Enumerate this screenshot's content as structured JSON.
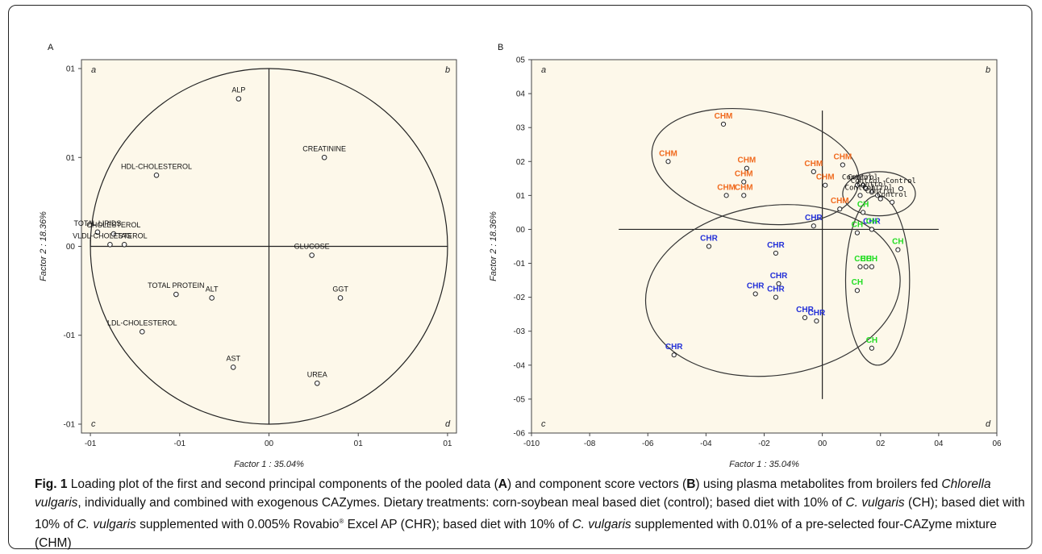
{
  "figure": {
    "caption": {
      "fig_label": "Fig. 1",
      "seg1": " Loading plot of the first and second principal components of the pooled data (",
      "A": "A",
      "seg2": ") and component score vectors (",
      "B": "B",
      "seg3": ") using plasma metabolites from broilers fed ",
      "species": "Chlorella vulgaris",
      "seg4": ", individually and combined with exogenous CAZymes. Dietary treatments: corn-soybean meal based diet (control); based diet with 10% of ",
      "cv1": "C. vulgaris",
      "seg5": " (CH); based diet with 10% of ",
      "cv2": "C. vulgaris",
      "seg6": " supplemented with 0.005% Rovabio",
      "reg": "®",
      "seg7": " Excel AP (CHR); based diet with 10% of ",
      "cv3": "C. vulgaris",
      "seg8": " supplemented with 0.01% of a pre-selected four-CAZyme mixture (CHM)"
    }
  },
  "chart_data": [
    {
      "type": "scatter",
      "panel_label": "A",
      "xlabel": "Factor 1 : 35.04%",
      "ylabel": "Factor 2 : 18.36%",
      "xlim": [
        -1.05,
        1.05
      ],
      "ylim": [
        -1.05,
        1.05
      ],
      "x_ticks": [
        -1.0,
        -0.5,
        0.0,
        0.5,
        1.0
      ],
      "x_tick_labels": [
        "-01",
        "-01",
        "00",
        "01",
        "01"
      ],
      "y_ticks": [
        1.0,
        0.5,
        0.0,
        -0.5,
        -1.0
      ],
      "y_tick_labels": [
        "01",
        "01",
        "00",
        "-01",
        "-01"
      ],
      "quadrant_labels": [
        "a",
        "b",
        "c",
        "d"
      ],
      "unit_circle": true,
      "points": [
        {
          "label": "ALP",
          "x": -0.17,
          "y": 0.83
        },
        {
          "label": "CREATININE",
          "x": 0.31,
          "y": 0.5
        },
        {
          "label": "HDL-CHOLESTEROL",
          "x": -0.63,
          "y": 0.4
        },
        {
          "label": "TOTAL LIPIDS",
          "x": -0.96,
          "y": 0.08
        },
        {
          "label": "CHOLESTEROL",
          "x": -0.87,
          "y": 0.07
        },
        {
          "label": "VLDL-CHOLESTEROL",
          "x": -0.89,
          "y": 0.01
        },
        {
          "label": "TAG",
          "x": -0.81,
          "y": 0.01
        },
        {
          "label": "GLUCOSE",
          "x": 0.24,
          "y": -0.05
        },
        {
          "label": "TOTAL PROTEIN",
          "x": -0.52,
          "y": -0.27
        },
        {
          "label": "ALT",
          "x": -0.32,
          "y": -0.29
        },
        {
          "label": "GGT",
          "x": 0.4,
          "y": -0.29
        },
        {
          "label": "LDL-CHOLESTEROL",
          "x": -0.71,
          "y": -0.48
        },
        {
          "label": "AST",
          "x": -0.2,
          "y": -0.68
        },
        {
          "label": "UREA",
          "x": 0.27,
          "y": -0.77
        }
      ]
    },
    {
      "type": "scatter",
      "panel_label": "B",
      "xlabel": "Factor 1 : 35.04%",
      "ylabel": "Factor 2 : 18.36%",
      "xlim": [
        -1.0,
        0.6
      ],
      "ylim": [
        -0.6,
        0.5
      ],
      "x_ticks": [
        -1.0,
        -0.8,
        -0.6,
        -0.4,
        -0.2,
        0.0,
        0.2,
        0.4,
        0.6
      ],
      "x_tick_labels": [
        "-010",
        "-08",
        "-06",
        "-04",
        "-02",
        "00",
        "02",
        "04",
        "06"
      ],
      "y_ticks": [
        0.5,
        0.4,
        0.3,
        0.2,
        0.1,
        0.0,
        -0.1,
        -0.2,
        -0.3,
        -0.4,
        -0.5,
        -0.6
      ],
      "y_tick_labels": [
        "05",
        "04",
        "03",
        "02",
        "01",
        "00",
        "-01",
        "-02",
        "-03",
        "-04",
        "-05",
        "-06"
      ],
      "quadrant_labels": [
        "a",
        "b",
        "c",
        "d"
      ],
      "colors": {
        "CHM": "#f06a1e",
        "CHR": "#2330d8",
        "CH": "#22dd22",
        "Control": "#111111"
      },
      "series": [
        {
          "name": "CHM",
          "points": [
            [
              -0.34,
              0.31
            ],
            [
              -0.53,
              0.2
            ],
            [
              -0.26,
              0.18
            ],
            [
              -0.27,
              0.14
            ],
            [
              -0.33,
              0.1
            ],
            [
              -0.27,
              0.1
            ],
            [
              -0.03,
              0.17
            ],
            [
              0.01,
              0.13
            ],
            [
              0.07,
              0.19
            ],
            [
              0.06,
              0.06
            ]
          ]
        },
        {
          "name": "CHR",
          "points": [
            [
              -0.03,
              0.01
            ],
            [
              -0.39,
              -0.05
            ],
            [
              -0.16,
              -0.07
            ],
            [
              -0.15,
              -0.16
            ],
            [
              -0.23,
              -0.19
            ],
            [
              -0.16,
              -0.2
            ],
            [
              -0.06,
              -0.26
            ],
            [
              -0.02,
              -0.27
            ],
            [
              -0.51,
              -0.37
            ],
            [
              0.17,
              0.0
            ]
          ]
        },
        {
          "name": "CH",
          "points": [
            [
              0.14,
              0.05
            ],
            [
              0.12,
              -0.01
            ],
            [
              0.17,
              0.0
            ],
            [
              0.26,
              -0.06
            ],
            [
              0.13,
              -0.11
            ],
            [
              0.17,
              -0.11
            ],
            [
              0.15,
              -0.11
            ],
            [
              0.12,
              -0.18
            ],
            [
              0.17,
              -0.35
            ]
          ]
        },
        {
          "name": "Control",
          "points": [
            [
              0.12,
              0.13
            ],
            [
              0.14,
              0.13
            ],
            [
              0.15,
              0.12
            ],
            [
              0.17,
              0.11
            ],
            [
              0.19,
              0.1
            ],
            [
              0.13,
              0.1
            ],
            [
              0.2,
              0.09
            ],
            [
              0.24,
              0.08
            ],
            [
              0.27,
              0.12
            ]
          ]
        }
      ],
      "group_ellipses": [
        "CHM",
        "CHR",
        "CH",
        "Control"
      ]
    }
  ]
}
